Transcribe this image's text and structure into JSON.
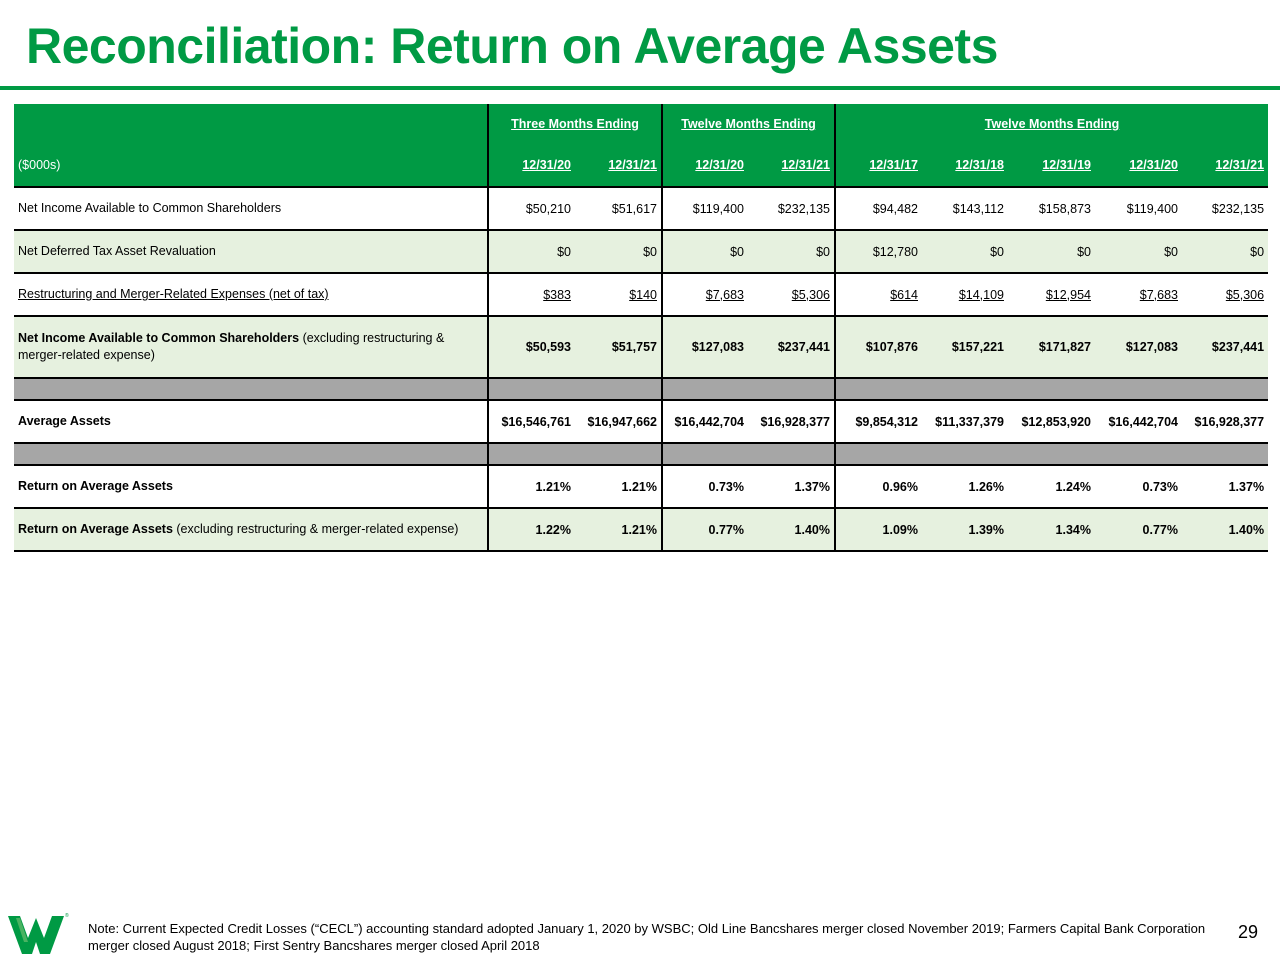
{
  "title": "Reconciliation: Return on Average Assets",
  "table": {
    "header": {
      "group1": "Three Months Ending",
      "group2": "Twelve Months Ending",
      "group3": "Twelve Months Ending",
      "label": "($000s)",
      "dates": [
        "12/31/20",
        "12/31/21",
        "12/31/20",
        "12/31/21",
        "12/31/17",
        "12/31/18",
        "12/31/19",
        "12/31/20",
        "12/31/21"
      ]
    },
    "rows": [
      {
        "label": "Net Income Available to Common Shareholders",
        "values": [
          "$50,210",
          "$51,617",
          "$119,400",
          "$232,135",
          "$94,482",
          "$143,112",
          "$158,873",
          "$119,400",
          "$232,135"
        ]
      },
      {
        "label": "Net Deferred Tax Asset Revaluation",
        "values": [
          "$0",
          "$0",
          "$0",
          "$0",
          "$12,780",
          "$0",
          "$0",
          "$0",
          "$0"
        ]
      },
      {
        "label": "Restructuring and Merger-Related Expenses (net of tax)",
        "values": [
          "$383",
          "$140",
          "$7,683",
          "$5,306",
          "$614",
          "$14,109",
          "$12,954",
          "$7,683",
          "$5,306"
        ]
      },
      {
        "label_bold": "Net Income Available to Common Shareholders",
        "label_normal": " (excluding restructuring & merger-related expense)",
        "values": [
          "$50,593",
          "$51,757",
          "$127,083",
          "$237,441",
          "$107,876",
          "$157,221",
          "$171,827",
          "$127,083",
          "$237,441"
        ]
      },
      {
        "label": "Average Assets",
        "values": [
          "$16,546,761",
          "$16,947,662",
          "$16,442,704",
          "$16,928,377",
          "$9,854,312",
          "$11,337,379",
          "$12,853,920",
          "$16,442,704",
          "$16,928,377"
        ]
      },
      {
        "label": "Return on Average Assets",
        "values": [
          "1.21%",
          "1.21%",
          "0.73%",
          "1.37%",
          "0.96%",
          "1.26%",
          "1.24%",
          "0.73%",
          "1.37%"
        ]
      },
      {
        "label_bold": "Return on Average Assets",
        "label_normal": " (excluding restructuring & merger-related expense)",
        "values": [
          "1.22%",
          "1.21%",
          "0.77%",
          "1.40%",
          "1.09%",
          "1.39%",
          "1.34%",
          "0.77%",
          "1.40%"
        ]
      }
    ]
  },
  "footnote": "Note: Current Expected Credit Losses (“CECL”) accounting standard adopted January 1, 2020 by WSBC; Old Line Bancshares merger closed November 2019; Farmers Capital Bank Corporation merger closed August 2018; First Sentry Bancshares merger closed April 2018",
  "page_number": "29",
  "logo": {
    "name": "wesbanco-w-logo",
    "color": "#009a44"
  },
  "colors": {
    "brand_green": "#009a44",
    "light_green_row": "#e6f1df",
    "spacer_gray": "#a6a6a6"
  }
}
